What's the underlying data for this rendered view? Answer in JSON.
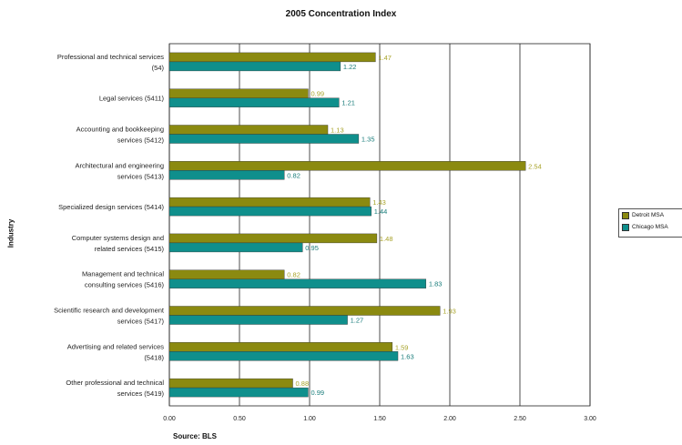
{
  "chart_data": {
    "type": "bar",
    "orientation": "horizontal",
    "title": "2005 Concentration Index",
    "ylabel": "Industry",
    "xlabel": "",
    "source": "Source: BLS",
    "xlim": [
      0,
      3
    ],
    "xticks": [
      "0.00",
      "0.50",
      "1.00",
      "1.50",
      "2.00",
      "2.50",
      "3.00"
    ],
    "grid": "vertical",
    "legend_position": "right",
    "categories": [
      [
        "Professional and technical services",
        "(54)"
      ],
      [
        "Legal services (5411)"
      ],
      [
        "Accounting and bookkeeping",
        "services (5412)"
      ],
      [
        "Architectural and engineering",
        "services (5413)"
      ],
      [
        "Specialized design services (5414)"
      ],
      [
        "Computer systems design and",
        "related services (5415)"
      ],
      [
        "Management and technical",
        "consulting services (5416)"
      ],
      [
        "Scientific research and development",
        "services (5417)"
      ],
      [
        "Advertising and related services",
        "(5418)"
      ],
      [
        "Other professional and technical",
        "services (5419)"
      ]
    ],
    "series": [
      {
        "name": "Detroit MSA",
        "color": "#8b8a10",
        "label_color": "#a8a32a",
        "values": [
          1.47,
          0.99,
          1.13,
          2.54,
          1.43,
          1.48,
          0.82,
          1.93,
          1.59,
          0.88
        ],
        "labels": [
          "1.47",
          "0.99",
          "1.13",
          "2.54",
          "1.43",
          "1.48",
          "0.82",
          "1.93",
          "1.59",
          "0.88"
        ]
      },
      {
        "name": "Chicago MSA",
        "color": "#0f8f8c",
        "label_color": "#1a7d7b",
        "values": [
          1.22,
          1.21,
          1.35,
          0.82,
          1.44,
          0.95,
          1.83,
          1.27,
          1.63,
          0.99
        ],
        "labels": [
          "1.22",
          "1.21",
          "1.35",
          "0.82",
          "1.44",
          "0.95",
          "1.83",
          "1.27",
          "1.63",
          "0.99"
        ]
      }
    ]
  }
}
